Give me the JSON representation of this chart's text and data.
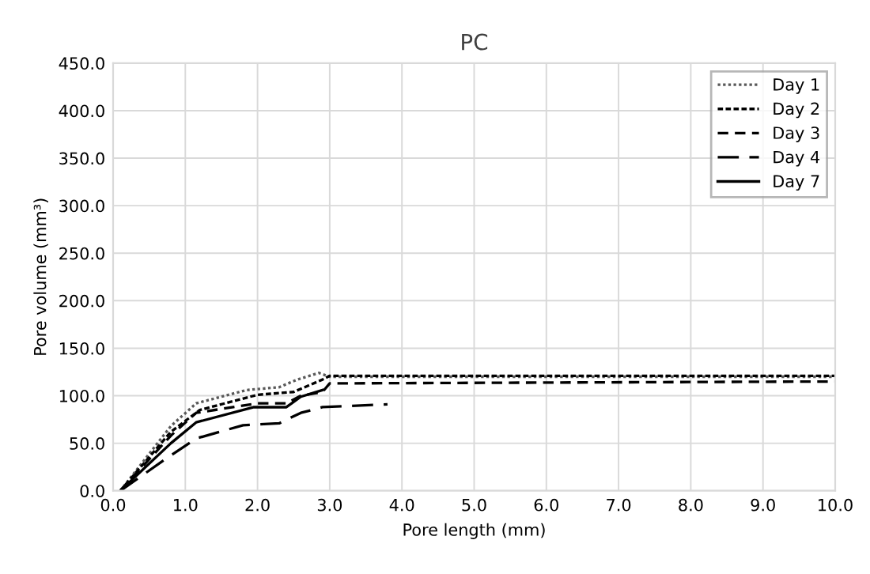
{
  "chart_data": {
    "type": "line",
    "title": "PC",
    "xlabel": "Pore length (mm)",
    "ylabel": "Pore volume (mm³)",
    "xlim": [
      0,
      10
    ],
    "xticks": [
      {
        "value": 0,
        "label": "0.0"
      },
      {
        "value": 1,
        "label": "1.0"
      },
      {
        "value": 2,
        "label": "2.0"
      },
      {
        "value": 3,
        "label": "3.0"
      },
      {
        "value": 4,
        "label": "4.0"
      },
      {
        "value": 5,
        "label": "5.0"
      },
      {
        "value": 6,
        "label": "6.0"
      },
      {
        "value": 7,
        "label": "7.0"
      },
      {
        "value": 8,
        "label": "8.0"
      },
      {
        "value": 9,
        "label": "9.0"
      },
      {
        "value": 10,
        "label": "10.0"
      }
    ],
    "ylim": [
      0,
      450
    ],
    "yticks": [
      {
        "value": 0,
        "label": "0.0"
      },
      {
        "value": 50,
        "label": "50.0"
      },
      {
        "value": 100,
        "label": "100.0"
      },
      {
        "value": 150,
        "label": "150.0"
      },
      {
        "value": 200,
        "label": "200.0"
      },
      {
        "value": 250,
        "label": "250.0"
      },
      {
        "value": 300,
        "label": "300.0"
      },
      {
        "value": 350,
        "label": "350.0"
      },
      {
        "value": 400,
        "label": "400.0"
      },
      {
        "value": 450,
        "label": "450.0"
      }
    ],
    "grid": true,
    "legend": "top right",
    "series": [
      {
        "name": "Day 1",
        "color": "#595959",
        "line_style": "dotted",
        "x": [
          0.1,
          0.8,
          1.15,
          1.85,
          2.3,
          2.55,
          2.85,
          3.0,
          10
        ],
        "values": [
          0,
          68,
          92,
          106,
          109,
          117,
          124,
          120,
          120
        ]
      },
      {
        "name": "Day 2",
        "color": "#000000",
        "line_style": "dashed_short",
        "x": [
          0.1,
          0.8,
          1.2,
          2.0,
          2.5,
          2.9,
          3.0,
          10
        ],
        "values": [
          0,
          62,
          85,
          101,
          104,
          117,
          121,
          121
        ]
      },
      {
        "name": "Day 3",
        "color": "#000000",
        "line_style": "dashed",
        "x": [
          0.1,
          0.8,
          1.15,
          2.0,
          2.4,
          2.6,
          2.9,
          3.0,
          10
        ],
        "values": [
          0,
          58,
          82,
          92,
          92,
          100,
          104,
          113,
          115
        ]
      },
      {
        "name": "Day 4",
        "color": "#000000",
        "line_style": "dashed_long",
        "x": [
          0.1,
          0.7,
          1.15,
          1.8,
          2.3,
          2.6,
          2.9,
          3.8
        ],
        "values": [
          0,
          32,
          55,
          69,
          71,
          82,
          88,
          91
        ]
      },
      {
        "name": "Day 7",
        "color": "#000000",
        "line_style": "solid",
        "x": [
          0.1,
          0.8,
          1.15,
          1.95,
          2.4,
          2.6,
          2.9
        ],
        "values": [
          0,
          50,
          72,
          88,
          88,
          99,
          106
        ]
      }
    ]
  }
}
